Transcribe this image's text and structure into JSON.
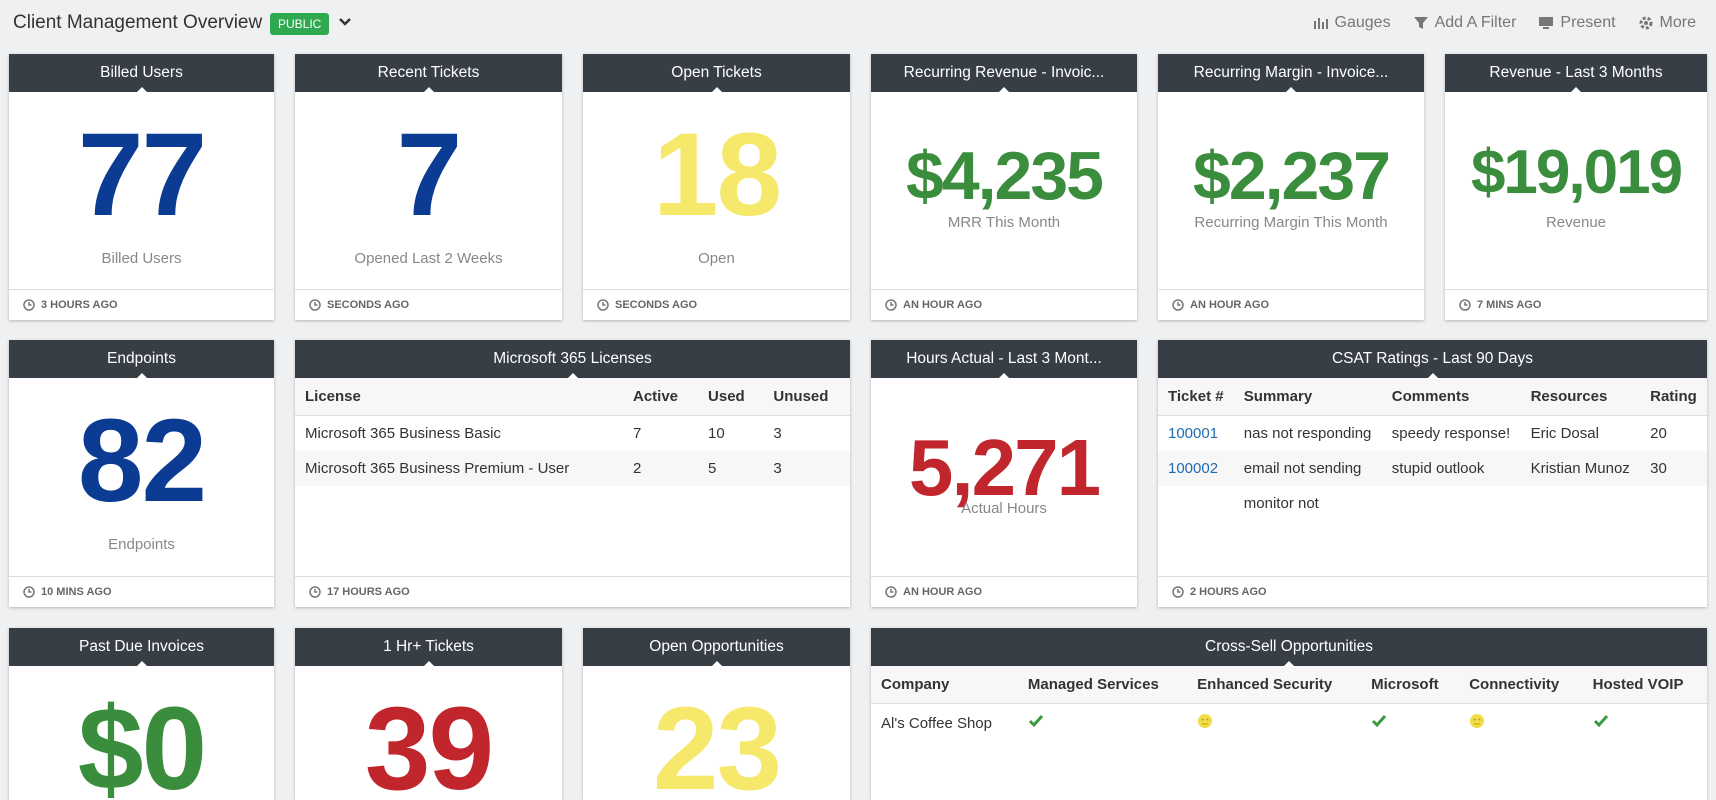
{
  "header": {
    "title": "Client Management Overview",
    "badge": "PUBLIC",
    "actions": [
      "Gauges",
      "Add A Filter",
      "Present",
      "More"
    ]
  },
  "widgets": [
    {
      "kind": "number",
      "title": "Billed Users",
      "value": "77",
      "caption": "Billed Users",
      "updated": "3 HOURS AGO",
      "color": "#0b3b93"
    },
    {
      "kind": "number",
      "title": "Recent Tickets",
      "value": "7",
      "caption": "Opened Last 2 Weeks",
      "updated": "SECONDS AGO",
      "color": "#0b3b93"
    },
    {
      "kind": "number",
      "title": "Open Tickets",
      "value": "18",
      "caption": "Open",
      "updated": "SECONDS AGO",
      "color": "#f5e86a"
    },
    {
      "kind": "number",
      "title": "Recurring Revenue - Invoic...",
      "value": "$4,235",
      "caption": "MRR This Month",
      "updated": "AN HOUR AGO",
      "color": "#3a8d3c"
    },
    {
      "kind": "number",
      "title": "Recurring Margin - Invoice...",
      "value": "$2,237",
      "caption": "Recurring Margin This Month",
      "updated": "AN HOUR AGO",
      "color": "#3a8d3c"
    },
    {
      "kind": "number",
      "title": "Revenue - Last 3 Months",
      "value": "$19,019",
      "caption": "Revenue",
      "updated": "7 MINS AGO",
      "color": "#3a8d3c"
    },
    {
      "kind": "number",
      "title": "Endpoints",
      "value": "82",
      "caption": "Endpoints",
      "updated": "10 MINS AGO",
      "color": "#0b3b93"
    },
    {
      "kind": "table",
      "title": "Microsoft 365 Licenses",
      "columns": [
        "License",
        "Active",
        "Used",
        "Unused"
      ],
      "rows": [
        [
          "Microsoft 365 Business Basic",
          "7",
          "10",
          "3"
        ],
        [
          "Microsoft 365 Business Premium - User",
          "2",
          "5",
          "3"
        ]
      ],
      "updated": "17 HOURS AGO"
    },
    {
      "kind": "number",
      "title": "Hours Actual - Last 3 Mont...",
      "value": "5,271",
      "caption": "Actual Hours",
      "updated": "AN HOUR AGO",
      "color": "#c0262c"
    },
    {
      "kind": "table",
      "title": "CSAT Ratings - Last 90 Days",
      "columns": [
        "Ticket #",
        "Summary",
        "Comments",
        "Resources",
        "Rating"
      ],
      "rows": [
        [
          "100001",
          "nas not responding",
          "speedy response!",
          "Eric Dosal",
          "20"
        ],
        [
          "100002",
          "email not sending",
          "stupid outlook",
          "Kristian Munoz",
          "30"
        ],
        [
          null,
          "monitor not",
          null,
          null,
          null
        ]
      ],
      "updated": "2 HOURS AGO"
    },
    {
      "kind": "number",
      "title": "Past Due Invoices",
      "value": "$0",
      "color": "#3a8d3c"
    },
    {
      "kind": "number",
      "title": "1 Hr+ Tickets",
      "value": "39",
      "color": "#c0262c"
    },
    {
      "kind": "number",
      "title": "Open Opportunities",
      "value": "23",
      "color": "#f5e86a"
    },
    {
      "kind": "status",
      "title": "Cross-Sell Opportunities",
      "columns": [
        "Company",
        "Managed Services",
        "Enhanced Security",
        "Microsoft",
        "Connectivity",
        "Hosted VOIP"
      ],
      "rows": [
        {
          "company": "Al's Coffee Shop",
          "status": [
            "check",
            "neutral",
            "check",
            "neutral",
            "check"
          ]
        }
      ]
    }
  ]
}
